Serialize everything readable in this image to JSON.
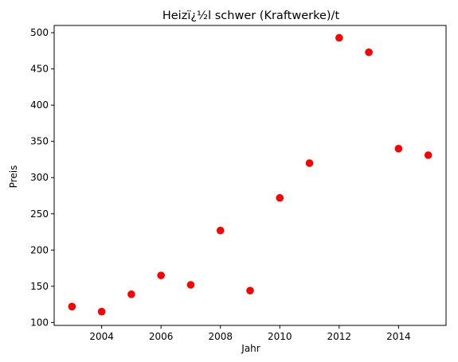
{
  "chart_data": {
    "type": "scatter",
    "title": "Heizï¿½l schwer (Kraftwerke)/t",
    "xlabel": "Jahr",
    "ylabel": "Preis",
    "xlim": [
      2002.4,
      2015.6
    ],
    "ylim": [
      96,
      510
    ],
    "x_ticks": [
      2004,
      2006,
      2008,
      2010,
      2012,
      2014
    ],
    "y_ticks": [
      100,
      150,
      200,
      250,
      300,
      350,
      400,
      450,
      500
    ],
    "marker_color": "#ff0000",
    "grid": false,
    "points": [
      {
        "x": 2003,
        "y": 122
      },
      {
        "x": 2004,
        "y": 115
      },
      {
        "x": 2005,
        "y": 139
      },
      {
        "x": 2006,
        "y": 165
      },
      {
        "x": 2007,
        "y": 152
      },
      {
        "x": 2008,
        "y": 227
      },
      {
        "x": 2009,
        "y": 144
      },
      {
        "x": 2010,
        "y": 272
      },
      {
        "x": 2011,
        "y": 320
      },
      {
        "x": 2012,
        "y": 493
      },
      {
        "x": 2013,
        "y": 473
      },
      {
        "x": 2014,
        "y": 340
      },
      {
        "x": 2015,
        "y": 331
      }
    ]
  }
}
